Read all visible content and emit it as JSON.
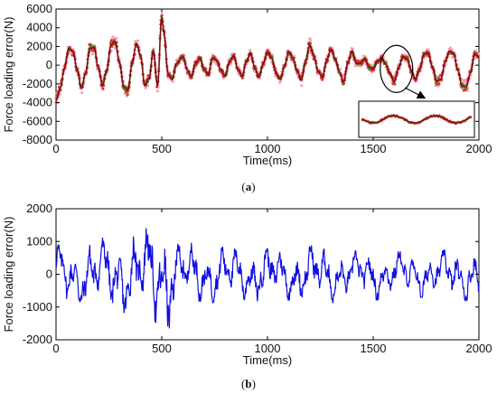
{
  "chart_data": [
    {
      "type": "line",
      "caption": "(a)",
      "xlabel": "Time(ms)",
      "ylabel": "Force loading error(N)",
      "xlim": [
        0,
        2000
      ],
      "ylim": [
        -8000,
        6000
      ],
      "x_ticks": [
        0,
        500,
        1000,
        1500,
        2000
      ],
      "y_ticks": [
        -8000,
        -6000,
        -4000,
        -2000,
        0,
        2000,
        4000,
        6000
      ],
      "grid": false,
      "legend": "none",
      "series_colors": {
        "measured": "#d62020",
        "fitted": "#8b1a1a",
        "scatter": "#e03030",
        "green": "#3a9a2a",
        "pink": "#f2a0b8"
      },
      "inset": {
        "xlim": [
          1400,
          2000
        ],
        "note": "zoomed view of the circled region near t=1600 ms"
      },
      "waveform": {
        "points": [
          [
            0,
            -3800
          ],
          [
            20,
            -2500
          ],
          [
            40,
            -300
          ],
          [
            60,
            1800
          ],
          [
            80,
            1500
          ],
          [
            100,
            -500
          ],
          [
            120,
            -2500
          ],
          [
            140,
            -800
          ],
          [
            160,
            1800
          ],
          [
            180,
            1900
          ],
          [
            200,
            -300
          ],
          [
            220,
            -2200
          ],
          [
            240,
            -500
          ],
          [
            260,
            2200
          ],
          [
            280,
            2500
          ],
          [
            300,
            300
          ],
          [
            320,
            -2300
          ],
          [
            340,
            -2700
          ],
          [
            360,
            200
          ],
          [
            380,
            2300
          ],
          [
            400,
            1000
          ],
          [
            420,
            -2200
          ],
          [
            440,
            -1400
          ],
          [
            460,
            1500
          ],
          [
            480,
            -2200
          ],
          [
            500,
            5200
          ],
          [
            510,
            3500
          ],
          [
            530,
            -1000
          ],
          [
            550,
            -1500
          ],
          [
            570,
            200
          ],
          [
            600,
            900
          ],
          [
            620,
            -500
          ],
          [
            640,
            -1200
          ],
          [
            660,
            200
          ],
          [
            680,
            800
          ],
          [
            700,
            -400
          ],
          [
            720,
            -1000
          ],
          [
            740,
            800
          ],
          [
            760,
            500
          ],
          [
            780,
            -500
          ],
          [
            800,
            -1200
          ],
          [
            820,
            300
          ],
          [
            840,
            1000
          ],
          [
            860,
            -400
          ],
          [
            880,
            -1200
          ],
          [
            900,
            400
          ],
          [
            920,
            1300
          ],
          [
            940,
            -300
          ],
          [
            960,
            -1300
          ],
          [
            980,
            200
          ],
          [
            1000,
            1400
          ],
          [
            1020,
            800
          ],
          [
            1040,
            -800
          ],
          [
            1060,
            -1500
          ],
          [
            1080,
            -200
          ],
          [
            1100,
            1400
          ],
          [
            1120,
            800
          ],
          [
            1140,
            -600
          ],
          [
            1160,
            -1600
          ],
          [
            1180,
            400
          ],
          [
            1200,
            2200
          ],
          [
            1220,
            900
          ],
          [
            1240,
            -700
          ],
          [
            1260,
            -1300
          ],
          [
            1280,
            500
          ],
          [
            1300,
            1700
          ],
          [
            1320,
            700
          ],
          [
            1340,
            -700
          ],
          [
            1360,
            -1800
          ],
          [
            1380,
            300
          ],
          [
            1400,
            1500
          ],
          [
            1420,
            200
          ],
          [
            1440,
            200
          ],
          [
            1460,
            700
          ],
          [
            1480,
            -200
          ],
          [
            1500,
            -400
          ],
          [
            1520,
            400
          ],
          [
            1540,
            800
          ],
          [
            1560,
            100
          ],
          [
            1580,
            -900
          ],
          [
            1600,
            -1800
          ],
          [
            1620,
            -300
          ],
          [
            1640,
            900
          ],
          [
            1660,
            700
          ],
          [
            1680,
            -600
          ],
          [
            1700,
            -1500
          ],
          [
            1720,
            -400
          ],
          [
            1740,
            1200
          ],
          [
            1760,
            1300
          ],
          [
            1780,
            -200
          ],
          [
            1800,
            -1700
          ],
          [
            1820,
            -1500
          ],
          [
            1840,
            300
          ],
          [
            1860,
            1500
          ],
          [
            1880,
            1200
          ],
          [
            1900,
            -500
          ],
          [
            1920,
            -2200
          ],
          [
            1940,
            -2300
          ],
          [
            1960,
            -800
          ],
          [
            1980,
            1200
          ],
          [
            2000,
            900
          ]
        ]
      }
    },
    {
      "type": "line",
      "caption": "(b)",
      "xlabel": "Time(ms)",
      "ylabel": "Force loading error(N)",
      "xlim": [
        0,
        2000
      ],
      "ylim": [
        -2000,
        2000
      ],
      "x_ticks": [
        0,
        500,
        1000,
        1500,
        2000
      ],
      "y_ticks": [
        -2000,
        -1000,
        0,
        1000,
        2000
      ],
      "grid": false,
      "legend": "none",
      "color": "#1010e0",
      "amplitude_envelope": [
        [
          0,
          900
        ],
        [
          100,
          1000
        ],
        [
          200,
          1100
        ],
        [
          300,
          1200
        ],
        [
          400,
          1300
        ],
        [
          450,
          1500
        ],
        [
          500,
          1900
        ],
        [
          550,
          1600
        ],
        [
          600,
          1000
        ],
        [
          700,
          900
        ],
        [
          800,
          900
        ],
        [
          900,
          800
        ],
        [
          1000,
          900
        ],
        [
          1100,
          800
        ],
        [
          1200,
          900
        ],
        [
          1300,
          900
        ],
        [
          1400,
          700
        ],
        [
          1500,
          800
        ],
        [
          1600,
          700
        ],
        [
          1700,
          700
        ],
        [
          1800,
          700
        ],
        [
          1900,
          800
        ],
        [
          2000,
          800
        ]
      ]
    }
  ]
}
